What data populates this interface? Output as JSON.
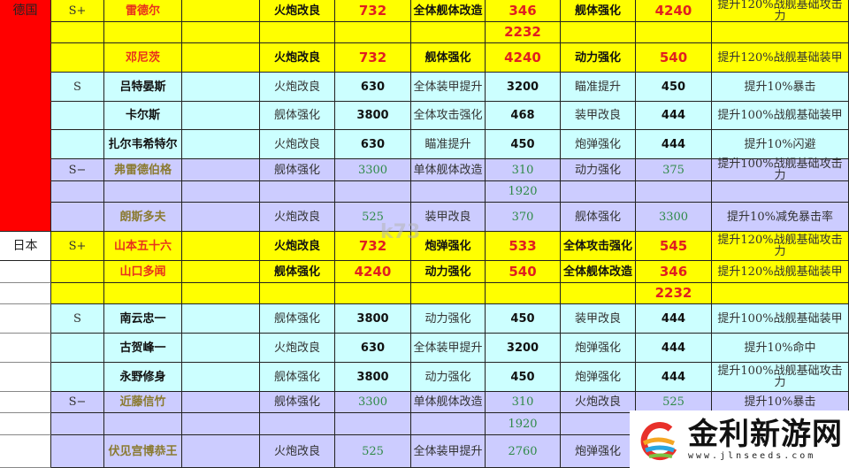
{
  "table": {
    "rows": [
      {
        "style": "y",
        "cells": [
          "德国",
          "S+",
          "雷德尔",
          "",
          "火炮改良",
          "732",
          "全体舰体改造",
          "346",
          "舰体强化",
          "4240",
          "提升120%战舰基础攻击力"
        ]
      },
      {
        "style": "y",
        "cells": [
          "",
          "",
          "",
          "",
          "",
          "",
          "",
          "2232",
          "",
          "",
          ""
        ]
      },
      {
        "style": "y",
        "cells": [
          "",
          "",
          "邓尼茨",
          "",
          "火炮改良",
          "732",
          "舰体强化",
          "4240",
          "动力强化",
          "540",
          "提升120%战舰基础装甲"
        ]
      },
      {
        "style": "c",
        "cells": [
          "",
          "S",
          "吕特晏斯",
          "",
          "火炮改良",
          "630",
          "全体装甲提升",
          "3200",
          "瞄准提升",
          "450",
          "提升10%暴击"
        ]
      },
      {
        "style": "c",
        "cells": [
          "",
          "",
          "卡尔斯",
          "",
          "舰体强化",
          "3800",
          "全体攻击强化",
          "468",
          "装甲改良",
          "444",
          "提升100%战舰基础装甲"
        ]
      },
      {
        "style": "c",
        "cells": [
          "",
          "",
          "扎尔韦希特尔",
          "",
          "火炮改良",
          "630",
          "瞄准提升",
          "450",
          "炮弹强化",
          "444",
          "提升10%闪避"
        ]
      },
      {
        "style": "p",
        "cells": [
          "",
          "S−",
          "弗雷德伯格",
          "",
          "舰体强化",
          "3300",
          "单体舰体改造",
          "310",
          "动力强化",
          "375",
          "提升100%战舰基础攻击力"
        ]
      },
      {
        "style": "p",
        "cells": [
          "",
          "",
          "",
          "",
          "",
          "",
          "",
          "1920",
          "",
          "",
          ""
        ]
      },
      {
        "style": "p",
        "cells": [
          "",
          "",
          "朗斯多夫",
          "",
          "火炮改良",
          "525",
          "装甲改良",
          "370",
          "舰体强化",
          "3300",
          "提升10%减免暴击率"
        ]
      },
      {
        "style": "y",
        "cells": [
          "日本",
          "S+",
          "山本五十六",
          "",
          "火炮改良",
          "732",
          "炮弹强化",
          "533",
          "全体攻击强化",
          "545",
          "提升120%战舰基础攻击力"
        ]
      },
      {
        "style": "y",
        "cells": [
          "",
          "",
          "山口多闻",
          "",
          "舰体强化",
          "4240",
          "动力强化",
          "540",
          "全体舰体改造",
          "346",
          "提升120%战舰基础装甲"
        ]
      },
      {
        "style": "y",
        "cells": [
          "",
          "",
          "",
          "",
          "",
          "",
          "",
          "",
          "",
          "2232",
          ""
        ]
      },
      {
        "style": "c",
        "cells": [
          "",
          "S",
          "南云忠一",
          "",
          "舰体强化",
          "3800",
          "动力强化",
          "450",
          "装甲改良",
          "444",
          "提升100%战舰基础装甲"
        ]
      },
      {
        "style": "c",
        "cells": [
          "",
          "",
          "古贺峰一",
          "",
          "火炮改良",
          "630",
          "全体装甲提升",
          "3200",
          "炮弹强化",
          "444",
          "提升10%命中"
        ]
      },
      {
        "style": "c",
        "cells": [
          "",
          "",
          "永野修身",
          "",
          "舰体强化",
          "3800",
          "动力强化",
          "450",
          "炮弹强化",
          "444",
          "提升100%战舰基础攻击力"
        ]
      },
      {
        "style": "p",
        "cells": [
          "",
          "S−",
          "近藤信竹",
          "",
          "舰体强化",
          "3300",
          "单体舰体改造",
          "310",
          "火炮改良",
          "525",
          "提升10%暴击"
        ]
      },
      {
        "style": "p",
        "cells": [
          "",
          "",
          "",
          "",
          "",
          "",
          "",
          "1920",
          "",
          "",
          ""
        ]
      },
      {
        "style": "p",
        "cells": [
          "",
          "",
          "伏见宫博恭王",
          "",
          "火炮改良",
          "525",
          "全体装甲提升",
          "2760",
          "炮弹强化",
          "",
          ""
        ]
      }
    ],
    "country_colors": {
      "德国": "#ff0000",
      "日本": "#ffffff"
    }
  },
  "watermarks": {
    "center": "k73",
    "logo_name": "金利新游网",
    "logo_url": "www.jlnseeds.com"
  }
}
